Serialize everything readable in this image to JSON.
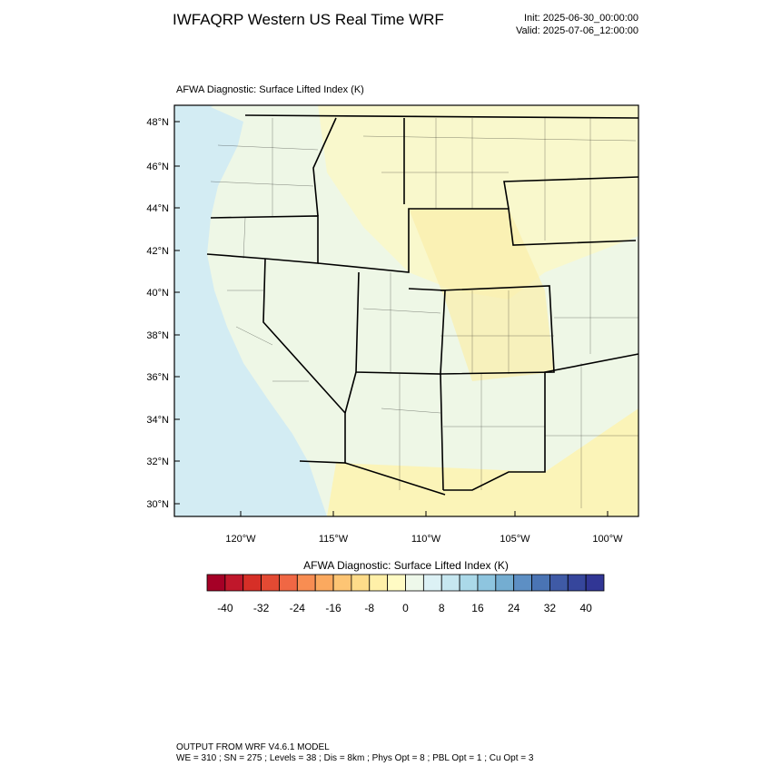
{
  "header": {
    "title": "IWFAQRP Western US Real Time WRF",
    "init": "Init: 2025-06-30_00:00:00",
    "valid": "Valid: 2025-07-06_12:00:00"
  },
  "map": {
    "title": "AFWA Diagnostic: Surface Lifted Index   (K)",
    "lat_labels": [
      "48°N",
      "46°N",
      "44°N",
      "42°N",
      "40°N",
      "38°N",
      "36°N",
      "34°N",
      "32°N",
      "30°N"
    ],
    "lon_labels": [
      "120°W",
      "115°W",
      "110°W",
      "105°W",
      "100°W"
    ]
  },
  "colorbar": {
    "title": "AFWA Diagnostic: Surface Lifted Index  (K)",
    "labels": [
      "-40",
      "-32",
      "-24",
      "-16",
      "-8",
      "0",
      "8",
      "16",
      "24",
      "32",
      "40"
    ],
    "colors": [
      "#a50026",
      "#c0172b",
      "#d62f27",
      "#e34a33",
      "#f06744",
      "#f88d52",
      "#fba95f",
      "#fdc574",
      "#fedc8a",
      "#fff0a8",
      "#fffbc4",
      "#eef8ea",
      "#dcf1f5",
      "#c6e7f0",
      "#abd9e9",
      "#8ec5df",
      "#74add1",
      "#5d8fc4",
      "#4a74b4",
      "#3f5aa6",
      "#36469c",
      "#313695"
    ]
  },
  "footer": {
    "line1": "OUTPUT FROM WRF V4.6.1 MODEL",
    "line2": "WE = 310 ; SN = 275 ; Levels = 38 ; Dis = 8km ; Phys Opt = 8 ; PBL Opt = 1 ; Cu Opt = 3"
  }
}
